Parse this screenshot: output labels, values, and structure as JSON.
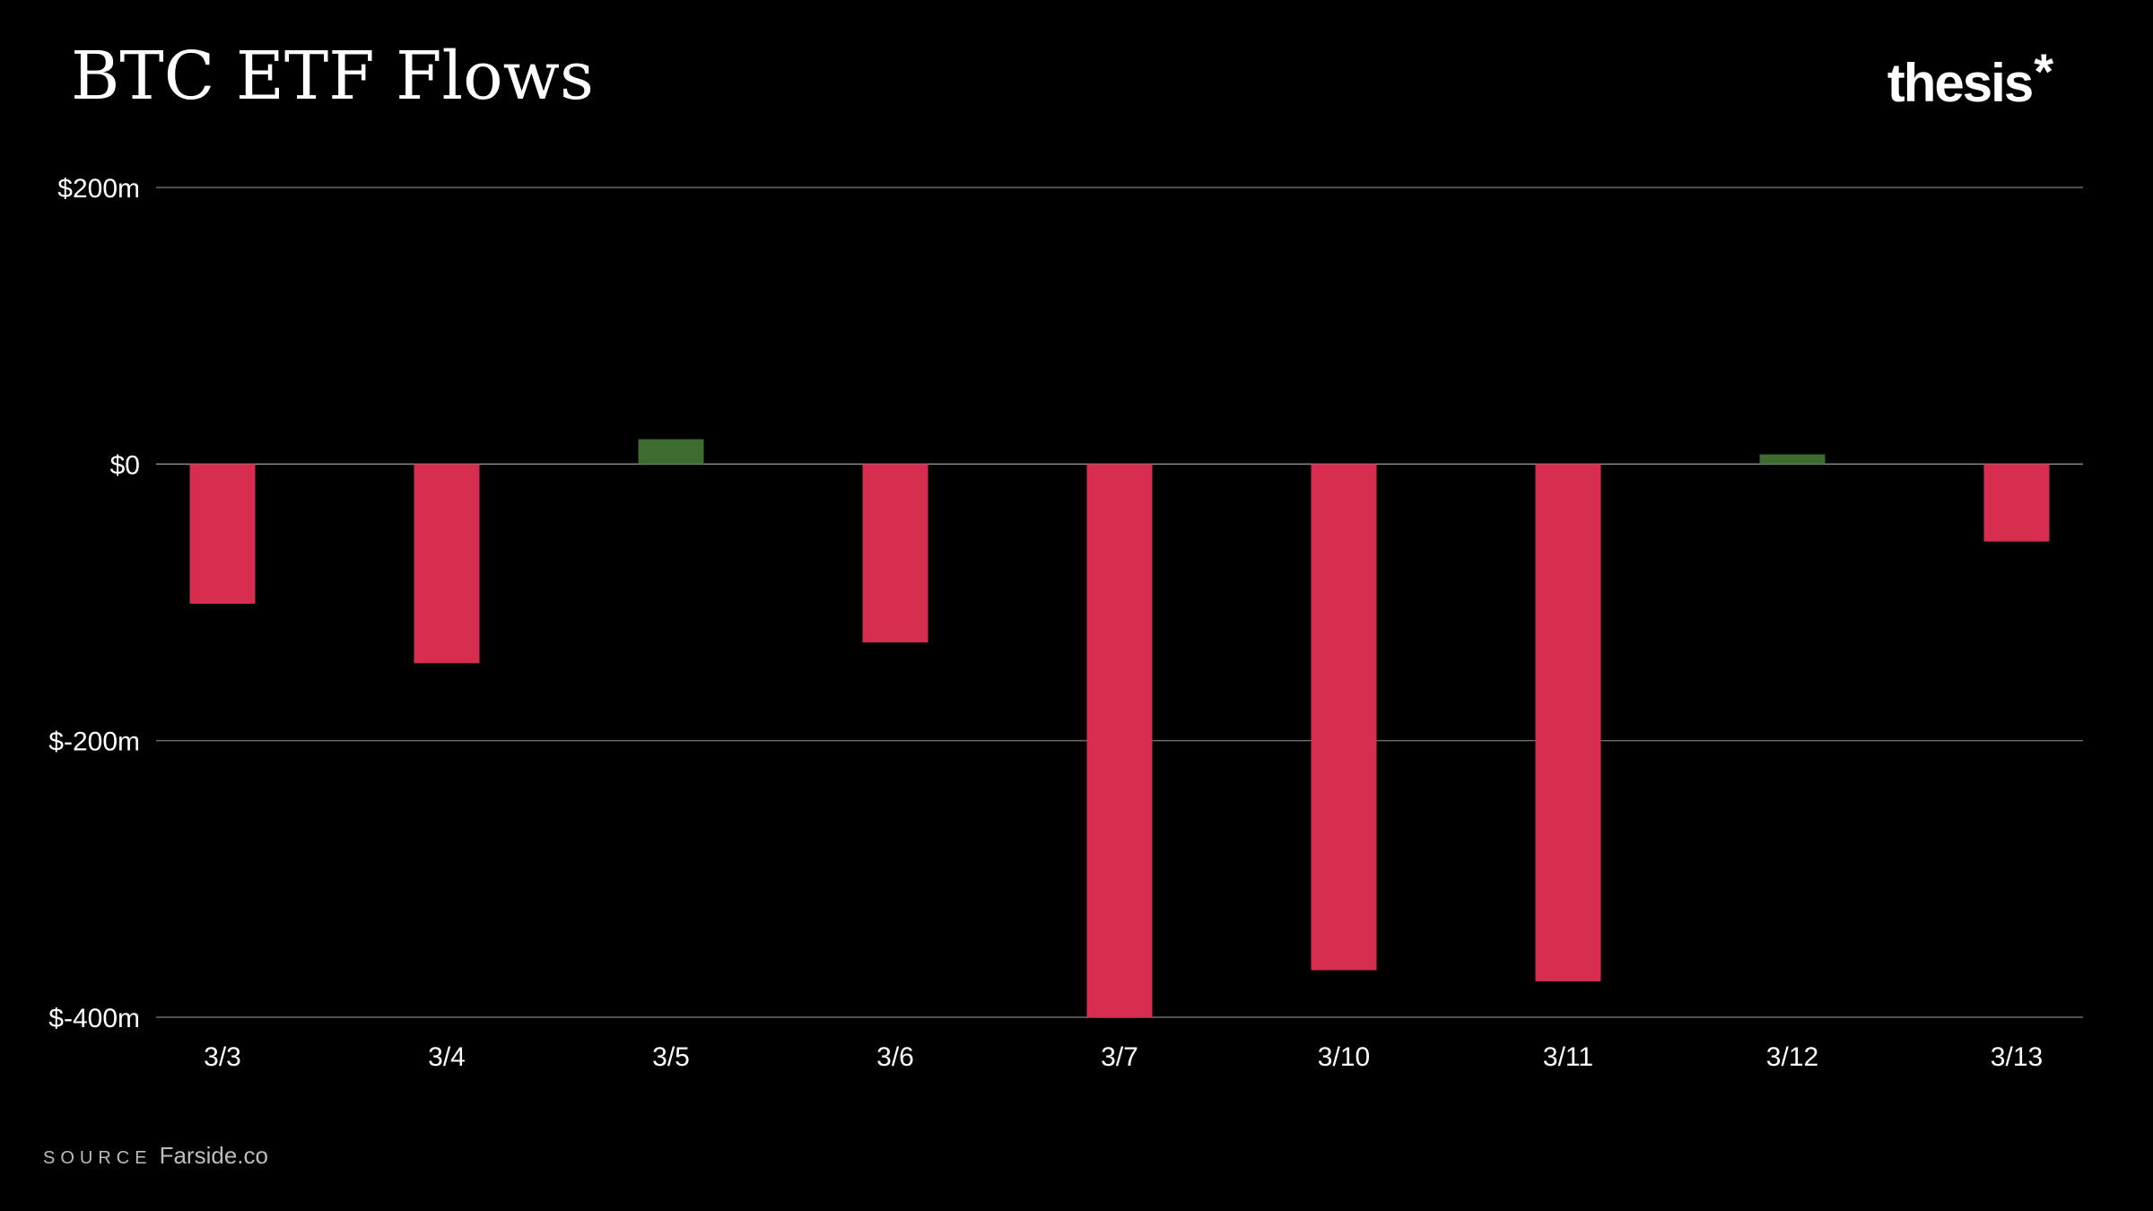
{
  "header": {
    "title": "BTC ETF Flows",
    "brand": "thesis",
    "brand_mark": "*"
  },
  "footer": {
    "source_label": "SOURCE",
    "source_value": "Farside.co"
  },
  "colors": {
    "background": "#000000",
    "negative": "#d72e50",
    "positive": "#3d6b30",
    "gridline": "#6a6a6a",
    "zero_line": "#8a8a8a",
    "text": "#ffffff"
  },
  "chart_data": {
    "type": "bar",
    "title": "BTC ETF Flows",
    "xlabel": "",
    "ylabel": "",
    "categories": [
      "3/3",
      "3/4",
      "3/5",
      "3/6",
      "3/7",
      "3/10",
      "3/11",
      "3/12",
      "3/13"
    ],
    "values": [
      -101,
      -144,
      18,
      -129,
      -400,
      -366,
      -374,
      7,
      -56
    ],
    "ylim": [
      -400,
      200
    ],
    "yticks": [
      200,
      0,
      -200,
      -400
    ],
    "ytick_labels": [
      "$200m",
      "$0",
      "$-200m",
      "$-400m"
    ],
    "grid": true,
    "legend": "none",
    "source": "Farside.co"
  }
}
